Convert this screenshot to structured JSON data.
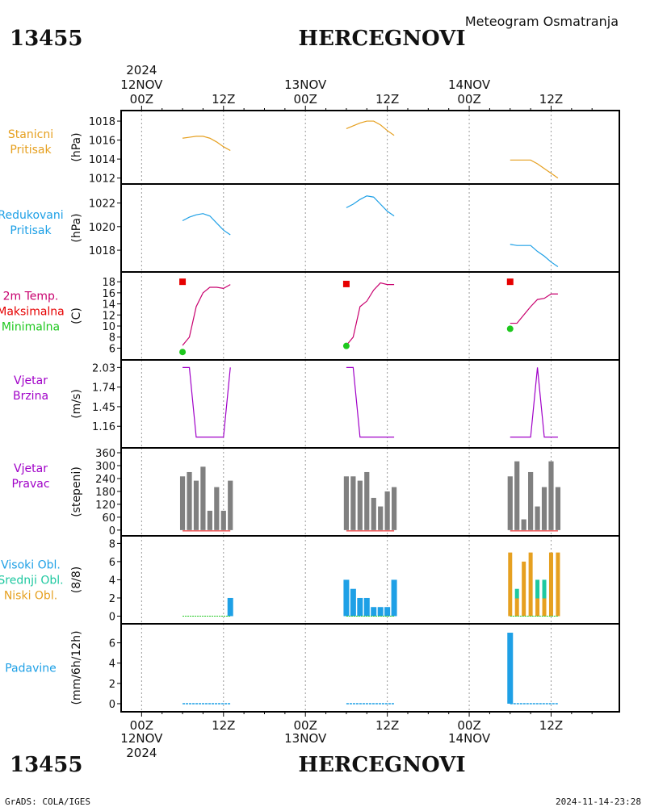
{
  "header": {
    "station_id": "13455",
    "station_name": "HERCEGNOVI",
    "subtitle": "Meteogram Osmatranja",
    "year": "2024",
    "footer_left": "GrADS: COLA/IGES",
    "footer_right": "2024-11-14-23:28"
  },
  "time_axis": {
    "top_dates": [
      "12NOV",
      "13NOV",
      "14NOV"
    ],
    "hour_labels": [
      "00Z",
      "12Z",
      "00Z",
      "12Z",
      "00Z",
      "12Z"
    ],
    "hour_values": [
      0,
      12,
      24,
      36,
      48,
      60
    ],
    "bottom_year": "2024",
    "range_hours": [
      -3,
      70
    ]
  },
  "colors": {
    "stanicni": "#e6a020",
    "redukovani": "#1ea0e6",
    "temp_line": "#c8006e",
    "maksimalna": "#e60000",
    "minimalna": "#1ec81e",
    "wind": "#a000c8",
    "bar_gray": "#808080",
    "high_cloud": "#1ea0e6",
    "mid_cloud": "#1ec8a0",
    "low_cloud": "#e6a020",
    "precip": "#1ea0e6"
  },
  "chart_data": [
    {
      "type": "line",
      "panel_label": [
        "Stanicni",
        "Pritisak"
      ],
      "ylabel": "(hPa)",
      "yticks": [
        1012,
        1014,
        1016,
        1018
      ],
      "ylim": [
        1011.8,
        1018.6
      ],
      "series": [
        {
          "x": [
            6,
            7,
            8,
            9,
            10,
            11,
            12,
            13,
            30,
            31,
            32,
            33,
            34,
            35,
            36,
            37,
            54,
            55,
            56,
            57,
            58,
            59,
            60,
            61
          ],
          "y": [
            1016.2,
            1016.3,
            1016.4,
            1016.4,
            1016.2,
            1015.8,
            1015.3,
            1014.9,
            1017.2,
            1017.5,
            1017.8,
            1018.0,
            1018.0,
            1017.6,
            1017.0,
            1016.5,
            1013.9,
            1013.9,
            1013.9,
            1013.9,
            1013.5,
            1013.0,
            1012.5,
            1012.0
          ]
        }
      ]
    },
    {
      "type": "line",
      "panel_label": [
        "Redukovani",
        "Pritisak"
      ],
      "ylabel": "(hPa)",
      "yticks": [
        1018,
        1020,
        1022
      ],
      "ylim": [
        1016.5,
        1023.2
      ],
      "series": [
        {
          "x": [
            6,
            7,
            8,
            9,
            10,
            11,
            12,
            13,
            30,
            31,
            32,
            33,
            34,
            35,
            36,
            37,
            54,
            55,
            56,
            57,
            58,
            59,
            60,
            61
          ],
          "y": [
            1020.5,
            1020.8,
            1021.0,
            1021.1,
            1020.9,
            1020.3,
            1019.7,
            1019.3,
            1021.6,
            1021.9,
            1022.3,
            1022.6,
            1022.5,
            1021.9,
            1021.3,
            1020.9,
            1018.5,
            1018.4,
            1018.4,
            1018.4,
            1017.9,
            1017.5,
            1017.0,
            1016.6
          ]
        }
      ]
    },
    {
      "type": "line",
      "panel_label": [
        "2m Temp.",
        "Maksimalna",
        "Minimalna"
      ],
      "ylabel": "(C)",
      "yticks": [
        6,
        8,
        10,
        12,
        14,
        16,
        18
      ],
      "ylim": [
        4.6,
        18.9
      ],
      "series": [
        {
          "x": [
            6,
            7,
            8,
            9,
            10,
            11,
            12,
            13,
            30,
            31,
            32,
            33,
            34,
            35,
            36,
            37,
            54,
            55,
            56,
            57,
            58,
            59,
            60,
            61
          ],
          "y": [
            6.5,
            8.0,
            13.5,
            16.0,
            17.0,
            17.0,
            16.8,
            17.5,
            6.5,
            8.0,
            13.5,
            14.5,
            16.5,
            17.8,
            17.5,
            17.5,
            10.5,
            10.5,
            12.0,
            13.5,
            14.8,
            15.0,
            15.8,
            15.8
          ]
        }
      ],
      "max_points": [
        {
          "x": 6,
          "y": 18.0
        },
        {
          "x": 30,
          "y": 17.6
        },
        {
          "x": 54,
          "y": 18.0
        }
      ],
      "min_points": [
        {
          "x": 6,
          "y": 5.3
        },
        {
          "x": 30,
          "y": 6.4
        },
        {
          "x": 54,
          "y": 9.5
        }
      ]
    },
    {
      "type": "line",
      "panel_label": [
        "Vjetar",
        "Brzina"
      ],
      "ylabel": "(m/s)",
      "yticks": [
        1.16,
        1.45,
        1.74,
        2.03
      ],
      "ylim": [
        0.9,
        2.07
      ],
      "series": [
        {
          "x": [
            6,
            7,
            8,
            9,
            10,
            11,
            12,
            13,
            30,
            31,
            32,
            33,
            34,
            35,
            36,
            37,
            54,
            55,
            56,
            57,
            58,
            59,
            60,
            61
          ],
          "y": [
            2.03,
            2.03,
            1.0,
            1.0,
            1.0,
            1.0,
            1.0,
            2.03,
            2.03,
            2.03,
            1.0,
            1.0,
            1.0,
            1.0,
            1.0,
            1.0,
            1.0,
            1.0,
            1.0,
            1.0,
            2.03,
            1.0,
            1.0,
            1.0
          ]
        }
      ]
    },
    {
      "type": "bar",
      "panel_label": [
        "Vjetar",
        "Pravac"
      ],
      "ylabel": "(stepeni)",
      "yticks": [
        0,
        60,
        120,
        180,
        240,
        300,
        360
      ],
      "ylim": [
        -8,
        360
      ],
      "x": [
        6,
        7,
        8,
        9,
        10,
        11,
        12,
        13,
        30,
        31,
        32,
        33,
        34,
        35,
        36,
        37,
        54,
        55,
        56,
        57,
        58,
        59,
        60,
        61
      ],
      "values": [
        250,
        270,
        230,
        295,
        90,
        200,
        90,
        230,
        250,
        250,
        230,
        270,
        150,
        110,
        180,
        200,
        250,
        320,
        50,
        270,
        110,
        200,
        320,
        200
      ]
    },
    {
      "type": "bar",
      "panel_label": [
        "Visoki Obl.",
        "Srednji Obl.",
        "Niski Obl."
      ],
      "ylabel": "(8/8)",
      "yticks": [
        0,
        2,
        4,
        6,
        8
      ],
      "ylim": [
        -0.4,
        8.3
      ],
      "x": [
        6,
        7,
        8,
        9,
        10,
        11,
        12,
        13,
        30,
        31,
        32,
        33,
        34,
        35,
        36,
        37,
        54,
        55,
        56,
        57,
        58,
        59,
        60,
        61
      ],
      "series": [
        {
          "name": "Visoki Obl.",
          "values": [
            0,
            0,
            0,
            0,
            0,
            0,
            0,
            2,
            4,
            3,
            2,
            2,
            1,
            1,
            1,
            4,
            0,
            0,
            0,
            0,
            0,
            0,
            0,
            0
          ]
        },
        {
          "name": "Srednji Obl.",
          "values": [
            0,
            0,
            0,
            0,
            0,
            0,
            0,
            0,
            0,
            0,
            0,
            0,
            0,
            0,
            0,
            0,
            0,
            3,
            0,
            0,
            4,
            4,
            0,
            0
          ]
        },
        {
          "name": "Niski Obl.",
          "values": [
            0,
            0,
            0,
            0,
            0,
            0,
            0,
            0,
            0,
            0,
            0,
            0,
            0,
            0,
            0,
            0,
            7,
            2,
            6,
            7,
            2,
            2,
            7,
            7
          ]
        }
      ]
    },
    {
      "type": "bar",
      "panel_label": [
        "Padavine"
      ],
      "ylabel": "(mm/6h/12h)",
      "yticks": [
        0,
        2,
        4,
        6
      ],
      "ylim": [
        -0.4,
        7.4
      ],
      "x": [
        6,
        7,
        8,
        9,
        10,
        11,
        12,
        13,
        30,
        31,
        32,
        33,
        34,
        35,
        36,
        37,
        54,
        55,
        56,
        57,
        58,
        59,
        60,
        61
      ],
      "values": [
        0,
        0,
        0,
        0,
        0,
        0,
        0,
        0,
        0,
        0,
        0,
        0,
        0,
        0,
        0,
        0,
        7,
        0,
        0,
        0,
        0,
        0,
        0,
        0
      ]
    }
  ]
}
